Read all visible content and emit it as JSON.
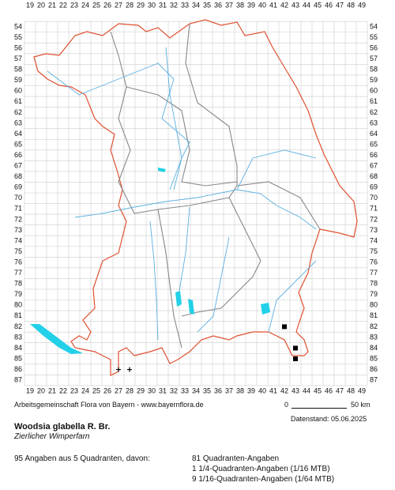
{
  "grid": {
    "columns": [
      19,
      20,
      21,
      22,
      23,
      24,
      25,
      26,
      27,
      28,
      29,
      30,
      31,
      32,
      33,
      34,
      35,
      36,
      37,
      38,
      39,
      40,
      41,
      42,
      43,
      44,
      45,
      46,
      47,
      48,
      49
    ],
    "rows": [
      54,
      55,
      56,
      57,
      58,
      59,
      60,
      61,
      62,
      63,
      64,
      65,
      66,
      67,
      68,
      69,
      70,
      71,
      72,
      73,
      74,
      75,
      76,
      77,
      78,
      79,
      80,
      81,
      82,
      83,
      84,
      85,
      86,
      87
    ]
  },
  "markers": [
    {
      "col": 42,
      "row": 82,
      "symbol": "square"
    },
    {
      "col": 43,
      "row": 84,
      "symbol": "square"
    },
    {
      "col": 43,
      "row": 85,
      "symbol": "square"
    },
    {
      "col": 27,
      "row": 86,
      "symbol": "cross"
    },
    {
      "col": 28,
      "row": 86,
      "symbol": "cross"
    }
  ],
  "credit": "Arbeitsgemeinschaft Flora von Bayern - www.bayernflora.de",
  "scale": {
    "start": "0",
    "end": "50 km"
  },
  "date": "Datenstand: 05.06.2025",
  "species": {
    "name": "Woodsia glabella R. Br.",
    "common": "Zierlicher Wimperfarn"
  },
  "summary": "95 Angaben aus 5 Quadranten, davon:",
  "breakdown": [
    "81 Quadranten-Angaben",
    "1 1/4-Quadranten-Angaben (1/16 MTB)",
    "9 1/16-Quadranten-Angaben (1/64 MTB)"
  ]
}
